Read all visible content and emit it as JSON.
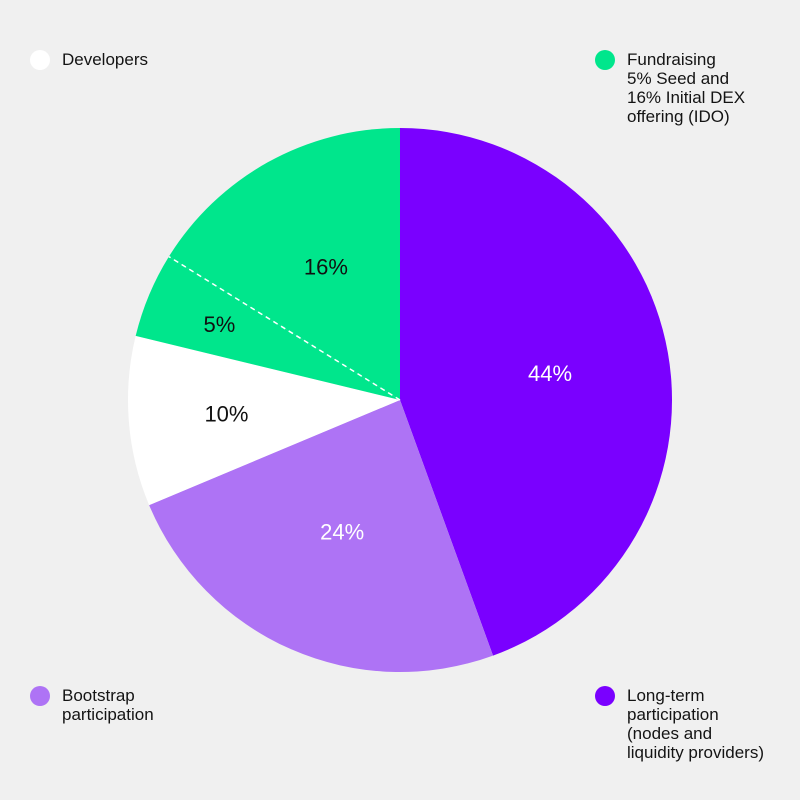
{
  "chart_data": {
    "type": "pie",
    "title": "",
    "slices": [
      {
        "label": "Long-term participation (nodes and liquidity providers)",
        "value": 44,
        "value_label": "44%",
        "color": "#7a00ff",
        "label_color": "#ffffff"
      },
      {
        "label": "Bootstrap participation",
        "value": 24,
        "value_label": "24%",
        "color": "#ae73f5",
        "label_color": "#ffffff"
      },
      {
        "label": "Developers",
        "value": 10,
        "value_label": "10%",
        "color": "#ffffff",
        "label_color": "#111111"
      },
      {
        "label": "Fundraising (Seed)",
        "value": 5,
        "value_label": "5%",
        "color": "#00e68c",
        "label_color": "#111111"
      },
      {
        "label": "Fundraising (Initial DEX offering)",
        "value": 16,
        "value_label": "16%",
        "color": "#00e68c",
        "label_color": "#111111"
      }
    ],
    "legend": [
      {
        "text": "Developers",
        "color": "#ffffff"
      },
      {
        "text": "Fundraising\n5% Seed and\n16% Initial DEX\noffering (IDO)",
        "color": "#00e68c"
      },
      {
        "text": "Bootstrap\nparticipation",
        "color": "#ae73f5"
      },
      {
        "text": "Long-term\nparticipation\n(nodes and\nliquidity providers)",
        "color": "#7a00ff"
      }
    ],
    "legend_placement": "corners",
    "dashed_divider": "between 5% seed and 16% IDO"
  }
}
